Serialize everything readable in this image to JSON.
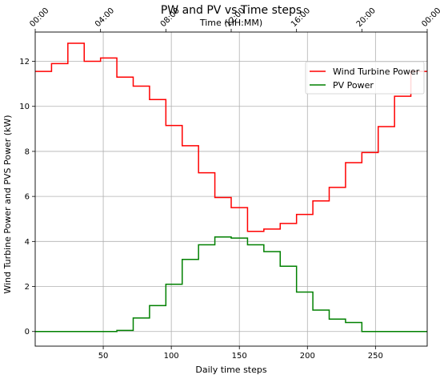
{
  "chart_data": {
    "type": "line",
    "title": "PW and PV vs Time steps",
    "xlabel": "Daily time steps",
    "ylabel": "Wind Turbine Power and PVS Power (kW)",
    "top_xlabel": "Time (HH:MM)",
    "xlim": [
      0,
      288
    ],
    "ylim": [
      -0.65,
      13.3
    ],
    "x_ticks": [
      50,
      100,
      150,
      200,
      250
    ],
    "y_ticks": [
      0,
      2,
      4,
      6,
      8,
      10,
      12
    ],
    "top_ticks": [
      {
        "x": 0,
        "label": "00:00"
      },
      {
        "x": 48,
        "label": "04:00"
      },
      {
        "x": 96,
        "label": "08:00"
      },
      {
        "x": 144,
        "label": "12:00"
      },
      {
        "x": 192,
        "label": "16:00"
      },
      {
        "x": 240,
        "label": "20:00"
      },
      {
        "x": 288,
        "label": "00:00"
      }
    ],
    "grid": true,
    "legend_position": "top-right",
    "step_size": 12,
    "series": [
      {
        "name": "Wind Turbine Power",
        "color": "#ff0000",
        "values": [
          11.55,
          11.9,
          12.8,
          12.0,
          12.15,
          11.3,
          10.9,
          10.3,
          9.15,
          8.25,
          7.05,
          5.95,
          5.5,
          4.45,
          4.55,
          4.8,
          5.2,
          5.8,
          6.4,
          7.5,
          7.95,
          9.1,
          10.45,
          11.55
        ]
      },
      {
        "name": "PV Power",
        "color": "#008000",
        "values": [
          0.0,
          0.0,
          0.0,
          0.0,
          0.0,
          0.05,
          0.6,
          1.15,
          2.1,
          3.2,
          3.85,
          4.2,
          4.15,
          3.85,
          3.55,
          2.9,
          1.75,
          0.95,
          0.55,
          0.4,
          0.0,
          0.0,
          0.0,
          0.0
        ]
      }
    ]
  }
}
